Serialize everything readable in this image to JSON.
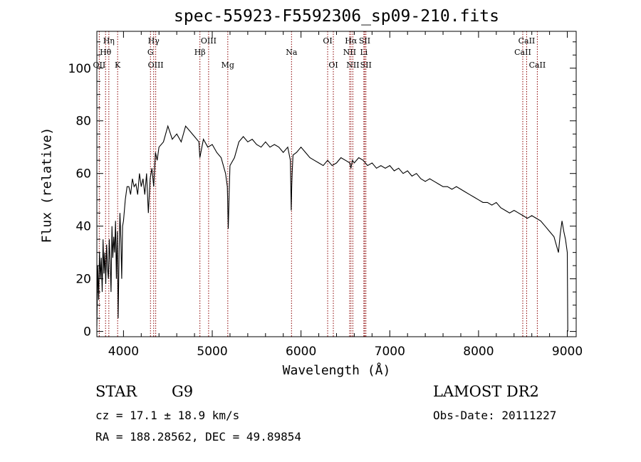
{
  "chart_data": {
    "type": "line",
    "title": "spec-55923-F5592306_sp09-210.fits",
    "xlabel": "Wavelength (Å)",
    "ylabel": "Flux (relative)",
    "xlim": [
      3700,
      9100
    ],
    "ylim": [
      -2,
      114
    ],
    "xticks": [
      4000,
      5000,
      6000,
      7000,
      8000,
      9000
    ],
    "yticks": [
      0,
      20,
      40,
      60,
      80,
      100
    ],
    "grid": false,
    "series_color": "#000000",
    "line_marker_color": "#8b0000",
    "series": [
      {
        "x": [
          3700,
          3710,
          3720,
          3730,
          3740,
          3750,
          3760,
          3770,
          3780,
          3790,
          3800,
          3810,
          3820,
          3830,
          3840,
          3850,
          3860,
          3870,
          3880,
          3890,
          3900,
          3910,
          3920,
          3930,
          3940,
          3950,
          3960,
          3970,
          3980,
          3990,
          4000,
          4020,
          4040,
          4060,
          4080,
          4100,
          4120,
          4140,
          4160,
          4180,
          4200,
          4220,
          4240,
          4260,
          4280,
          4300,
          4320,
          4340,
          4360,
          4380,
          4400,
          4450,
          4500,
          4550,
          4600,
          4650,
          4700,
          4750,
          4800,
          4850,
          4860,
          4900,
          4950,
          5000,
          5050,
          5100,
          5150,
          5170,
          5180,
          5190,
          5200,
          5250,
          5300,
          5350,
          5400,
          5450,
          5500,
          5550,
          5600,
          5650,
          5700,
          5750,
          5800,
          5850,
          5880,
          5890,
          5895,
          5900,
          5910,
          5950,
          6000,
          6050,
          6100,
          6150,
          6200,
          6250,
          6300,
          6350,
          6400,
          6450,
          6500,
          6550,
          6562,
          6580,
          6600,
          6650,
          6700,
          6750,
          6800,
          6850,
          6900,
          6950,
          7000,
          7050,
          7100,
          7150,
          7200,
          7250,
          7300,
          7350,
          7400,
          7450,
          7500,
          7550,
          7600,
          7650,
          7700,
          7750,
          7800,
          7850,
          7900,
          7950,
          8000,
          8050,
          8100,
          8150,
          8200,
          8250,
          8300,
          8350,
          8400,
          8450,
          8500,
          8550,
          8600,
          8650,
          8700,
          8750,
          8800,
          8850,
          8900,
          8920,
          8940,
          8960,
          8980,
          9000,
          9005
        ],
        "y": [
          2,
          25,
          12,
          30,
          20,
          28,
          15,
          35,
          22,
          30,
          18,
          33,
          24,
          20,
          35,
          26,
          15,
          40,
          28,
          36,
          30,
          42,
          20,
          38,
          5,
          30,
          45,
          35,
          20,
          40,
          42,
          50,
          55,
          55,
          52,
          58,
          55,
          56,
          52,
          60,
          55,
          58,
          52,
          60,
          45,
          58,
          62,
          55,
          68,
          65,
          70,
          72,
          78,
          73,
          75,
          72,
          78,
          76,
          74,
          72,
          66,
          73,
          70,
          71,
          68,
          66,
          60,
          55,
          39,
          52,
          63,
          66,
          72,
          74,
          72,
          73,
          71,
          70,
          72,
          70,
          71,
          70,
          68,
          70,
          65,
          46,
          55,
          60,
          67,
          68,
          70,
          68,
          66,
          65,
          64,
          63,
          65,
          63,
          64,
          66,
          65,
          64,
          62,
          65,
          64,
          66,
          65,
          63,
          64,
          62,
          63,
          62,
          63,
          61,
          62,
          60,
          61,
          59,
          60,
          58,
          57,
          58,
          57,
          56,
          55,
          55,
          54,
          55,
          54,
          53,
          52,
          51,
          50,
          49,
          49,
          48,
          49,
          47,
          46,
          45,
          46,
          45,
          44,
          43,
          44,
          43,
          42,
          40,
          38,
          36,
          30,
          37,
          42,
          38,
          35,
          30,
          0
        ]
      }
    ],
    "spectral_lines": [
      {
        "label": "Hη",
        "x": 3835,
        "row": 0
      },
      {
        "label": "Hθ",
        "x": 3798,
        "row": 1
      },
      {
        "label": "OII",
        "x": 3727,
        "row": 2
      },
      {
        "label": "K",
        "x": 3934,
        "row": 2
      },
      {
        "label": "Hγ",
        "x": 4340,
        "row": 0
      },
      {
        "label": "G",
        "x": 4304,
        "row": 1
      },
      {
        "label": "OIII",
        "x": 4363,
        "row": 2
      },
      {
        "label": "OIII",
        "x": 4959,
        "row": 0
      },
      {
        "label": "Hβ",
        "x": 4861,
        "row": 1
      },
      {
        "label": "Mg",
        "x": 5175,
        "row": 2
      },
      {
        "label": "Na",
        "x": 5893,
        "row": 1
      },
      {
        "label": "OI",
        "x": 6300,
        "row": 0
      },
      {
        "label": "OI",
        "x": 6364,
        "row": 2
      },
      {
        "label": "Hα",
        "x": 6563,
        "row": 0
      },
      {
        "label": "NII",
        "x": 6548,
        "row": 1
      },
      {
        "label": "NII",
        "x": 6584,
        "row": 2
      },
      {
        "label": "SII",
        "x": 6717,
        "row": 0
      },
      {
        "label": "Li",
        "x": 6708,
        "row": 1
      },
      {
        "label": "SII",
        "x": 6731,
        "row": 2
      },
      {
        "label": "CaII",
        "x": 8542,
        "row": 0
      },
      {
        "label": "CaII",
        "x": 8498,
        "row": 1
      },
      {
        "label": "CaII",
        "x": 8662,
        "row": 2
      }
    ]
  },
  "info": {
    "object_type": "STAR",
    "subclass": "G9",
    "survey": "LAMOST DR2",
    "cz": "cz = 17.1 ± 18.9 km/s",
    "obs_date": "Obs-Date: 20111227",
    "coords": "RA = 188.28562, DEC =  49.89854"
  }
}
